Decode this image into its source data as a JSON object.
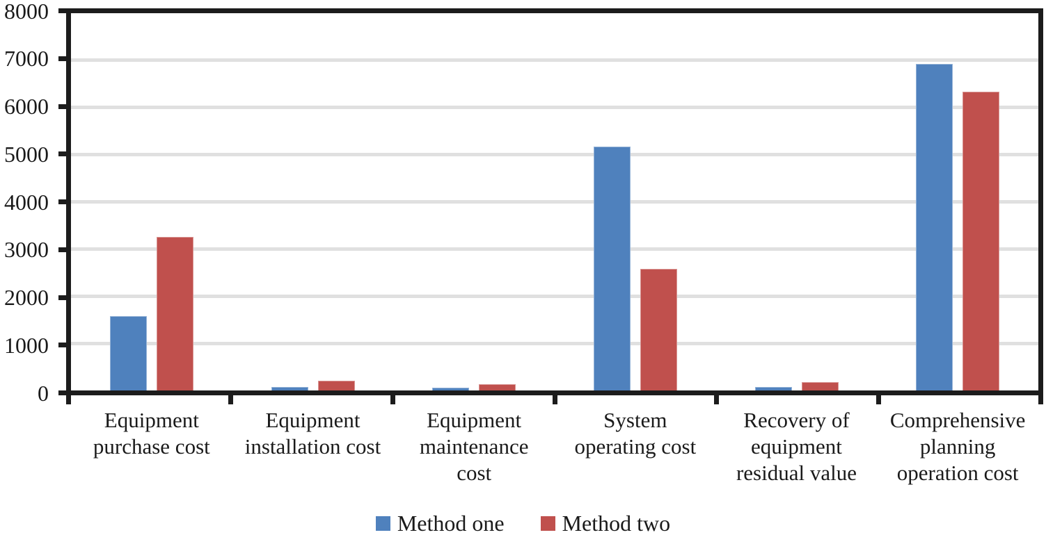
{
  "chart_data": {
    "type": "bar",
    "title": "",
    "categories": [
      "Equipment purchase cost",
      "Equipment installation cost",
      "Equipment maintenance cost",
      "System operating cost",
      "Recovery of equipment residual value",
      "Comprehensive planning operation cost"
    ],
    "category_label_lines": [
      [
        "Equipment",
        "purchase cost"
      ],
      [
        "Equipment",
        "installation cost"
      ],
      [
        "Equipment",
        "maintenance",
        "cost"
      ],
      [
        "System",
        "operating cost"
      ],
      [
        "Recovery of",
        "equipment",
        "residual value"
      ],
      [
        "Comprehensive",
        "planning",
        "operation cost"
      ]
    ],
    "series": [
      {
        "name": "Method one",
        "color": "#4F81BD",
        "values": [
          1570,
          80,
          60,
          5170,
          80,
          6930
        ]
      },
      {
        "name": "Method two",
        "color": "#C0504D",
        "values": [
          3250,
          210,
          140,
          2580,
          180,
          6330
        ]
      }
    ],
    "ylim": [
      0,
      8000
    ],
    "ytick_step": 1000,
    "ytick_labels": [
      "0",
      "1000",
      "2000",
      "3000",
      "4000",
      "5000",
      "6000",
      "7000",
      "8000"
    ],
    "grid": true,
    "gridline_color": "#E0E0E0",
    "axis_color": "#1C1C1C",
    "legend_position": "bottom"
  }
}
